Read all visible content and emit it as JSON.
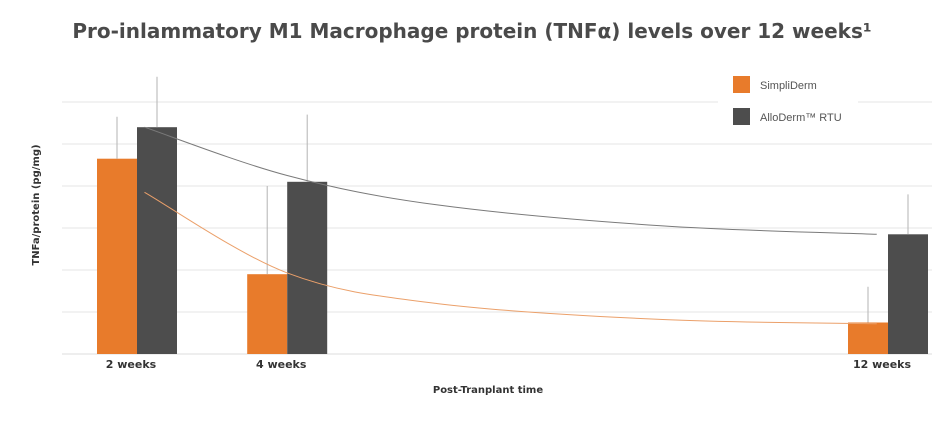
{
  "chart_data": {
    "type": "bar",
    "title": "Pro-inlammatory M1 Macrophage protein (TNFα) levels over 12 weeks¹",
    "xlabel": "Post-Tranplant time",
    "ylabel": "TNFa/protein (pg/mg)",
    "categories": [
      "2 weeks",
      "4 weeks",
      "12 weeks"
    ],
    "x_positions": [
      2,
      4,
      12
    ],
    "ylim": [
      0,
      7
    ],
    "grid": true,
    "legend_position": "top-right",
    "series": [
      {
        "name": "SimpliDerm",
        "color": "#e87b2b",
        "values": [
          4.65,
          1.9,
          0.75
        ],
        "error_upper": [
          5.65,
          4.0,
          1.6
        ],
        "trendline": [
          3.85,
          1.93,
          1.2,
          0.82,
          0.72
        ]
      },
      {
        "name": "AlloDerm™ RTU",
        "color": "#4d4d4d",
        "values": [
          5.4,
          4.1,
          2.85
        ],
        "error_upper": [
          6.6,
          5.7,
          3.8
        ],
        "trendline": [
          5.4,
          4.25,
          3.55,
          3.05,
          2.85
        ]
      }
    ],
    "trendline_x": [
      2.1,
      4.0,
      6.0,
      9.0,
      11.85
    ]
  }
}
